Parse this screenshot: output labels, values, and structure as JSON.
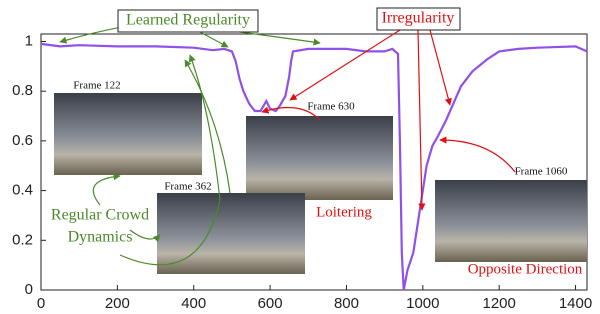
{
  "chart_data": {
    "type": "line",
    "x": [
      0,
      50,
      100,
      200,
      300,
      400,
      450,
      480,
      500,
      510,
      520,
      530,
      545,
      560,
      575,
      590,
      600,
      615,
      625,
      640,
      650,
      655,
      660,
      700,
      800,
      850,
      900,
      920,
      935,
      940,
      945,
      950,
      960,
      975,
      990,
      1000,
      1010,
      1025,
      1040,
      1060,
      1080,
      1100,
      1130,
      1170,
      1200,
      1250,
      1300,
      1400,
      1430
    ],
    "values": [
      0.99,
      0.98,
      0.985,
      0.98,
      0.98,
      0.975,
      0.965,
      0.97,
      0.96,
      0.92,
      0.85,
      0.8,
      0.75,
      0.72,
      0.72,
      0.76,
      0.73,
      0.72,
      0.74,
      0.78,
      0.86,
      0.92,
      0.96,
      0.97,
      0.97,
      0.96,
      0.96,
      0.97,
      0.95,
      0.6,
      0.15,
      0.0,
      0.08,
      0.15,
      0.3,
      0.4,
      0.5,
      0.58,
      0.62,
      0.68,
      0.75,
      0.82,
      0.88,
      0.93,
      0.96,
      0.97,
      0.975,
      0.98,
      0.96
    ],
    "color": "#9150e8",
    "xlim": [
      0,
      1430
    ],
    "ylim": [
      0,
      1.03
    ],
    "xticks": [
      0,
      200,
      400,
      600,
      800,
      1000,
      1200,
      1400
    ],
    "yticks": [
      0,
      0.2,
      0.4,
      0.6,
      0.8,
      1
    ],
    "annotations": [
      "Learned Regularity",
      "Irregularity",
      "Frame 122",
      "Frame 630",
      "Frame 362",
      "Frame 1060",
      "Regular Crowd",
      "Dynamics",
      "Loitering",
      "Opposite Direction"
    ]
  }
}
